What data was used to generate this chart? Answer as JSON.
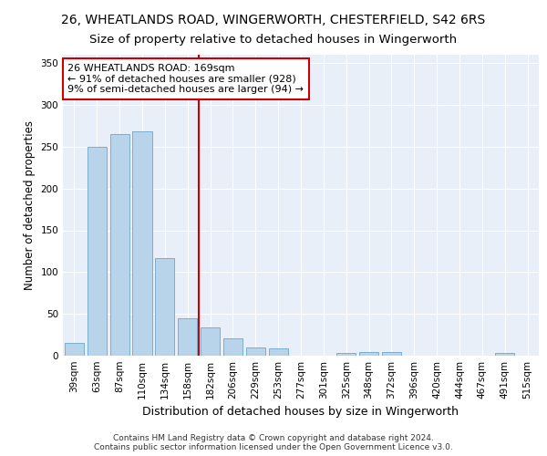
{
  "title1": "26, WHEATLANDS ROAD, WINGERWORTH, CHESTERFIELD, S42 6RS",
  "title2": "Size of property relative to detached houses in Wingerworth",
  "xlabel": "Distribution of detached houses by size in Wingerworth",
  "ylabel": "Number of detached properties",
  "categories": [
    "39sqm",
    "63sqm",
    "87sqm",
    "110sqm",
    "134sqm",
    "158sqm",
    "182sqm",
    "206sqm",
    "229sqm",
    "253sqm",
    "277sqm",
    "301sqm",
    "325sqm",
    "348sqm",
    "372sqm",
    "396sqm",
    "420sqm",
    "444sqm",
    "467sqm",
    "491sqm",
    "515sqm"
  ],
  "values": [
    15,
    250,
    265,
    268,
    117,
    45,
    34,
    21,
    10,
    9,
    0,
    0,
    3,
    4,
    4,
    0,
    0,
    0,
    0,
    3,
    0
  ],
  "bar_color": "#b8d4ea",
  "bar_edge_color": "#7aaed0",
  "vline_x": 5.5,
  "vline_color": "#cc0000",
  "annotation_text": "26 WHEATLANDS ROAD: 169sqm\n← 91% of detached houses are smaller (928)\n9% of semi-detached houses are larger (94) →",
  "annotation_box_color": "#ffffff",
  "annotation_box_edge": "#cc0000",
  "ylim": [
    0,
    360
  ],
  "yticks": [
    0,
    50,
    100,
    150,
    200,
    250,
    300,
    350
  ],
  "footer": "Contains HM Land Registry data © Crown copyright and database right 2024.\nContains public sector information licensed under the Open Government Licence v3.0.",
  "bg_color": "#e8eff8",
  "grid_color": "#ffffff",
  "fig_bg_color": "#ffffff",
  "title1_fontsize": 10,
  "title2_fontsize": 9.5,
  "xlabel_fontsize": 9,
  "ylabel_fontsize": 8.5,
  "tick_fontsize": 7.5,
  "annotation_fontsize": 8,
  "footer_fontsize": 6.5
}
